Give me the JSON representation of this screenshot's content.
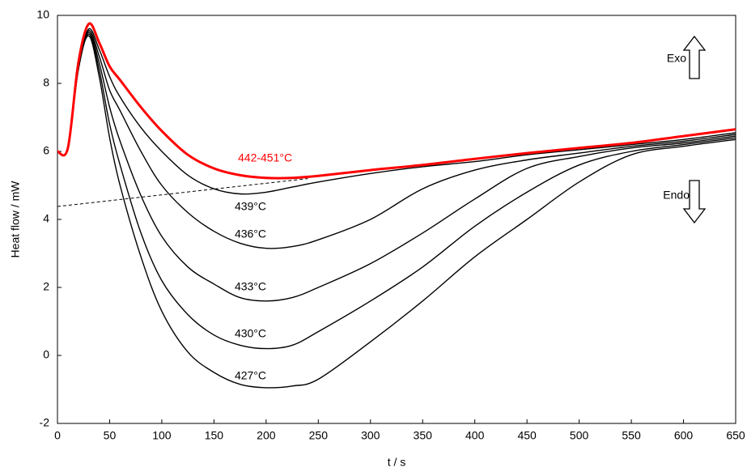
{
  "chart_data": {
    "type": "line",
    "x_label": "t / s",
    "y_label": "Heat flow / mW",
    "x": [
      0,
      10,
      20,
      30,
      40,
      50,
      60,
      80,
      100,
      125,
      150,
      175,
      200,
      225,
      250,
      300,
      350,
      400,
      450,
      500,
      550,
      600,
      650
    ],
    "series": [
      {
        "name": "442-451°C",
        "color": "#ff0000",
        "values": [
          6.0,
          6.1,
          8.6,
          9.75,
          9.2,
          8.5,
          8.1,
          7.3,
          6.6,
          5.9,
          5.5,
          5.3,
          5.22,
          5.22,
          5.28,
          5.45,
          5.6,
          5.78,
          5.95,
          6.1,
          6.25,
          6.45,
          6.65
        ]
      },
      {
        "name": "439°C",
        "color": "#000000",
        "values": [
          6.0,
          6.1,
          8.5,
          9.6,
          9.0,
          8.2,
          7.6,
          6.7,
          6.0,
          5.3,
          4.9,
          4.75,
          4.8,
          4.95,
          5.1,
          5.35,
          5.55,
          5.7,
          5.9,
          6.05,
          6.2,
          6.35,
          6.55
        ]
      },
      {
        "name": "436°C",
        "color": "#000000",
        "values": [
          6.0,
          6.1,
          8.5,
          9.55,
          8.8,
          7.8,
          7.2,
          6.0,
          5.0,
          4.2,
          3.65,
          3.3,
          3.15,
          3.2,
          3.4,
          4.0,
          4.9,
          5.45,
          5.75,
          5.95,
          6.15,
          6.3,
          6.5
        ]
      },
      {
        "name": "433°C",
        "color": "#000000",
        "values": [
          6.0,
          6.1,
          8.5,
          9.5,
          8.6,
          7.3,
          6.3,
          4.7,
          3.5,
          2.6,
          2.1,
          1.7,
          1.6,
          1.7,
          2.0,
          2.7,
          3.6,
          4.6,
          5.5,
          5.85,
          6.1,
          6.25,
          6.45
        ]
      },
      {
        "name": "430°C",
        "color": "#000000",
        "values": [
          6.0,
          6.1,
          8.4,
          9.45,
          8.4,
          6.8,
          5.6,
          3.6,
          2.2,
          1.2,
          0.6,
          0.3,
          0.2,
          0.3,
          0.7,
          1.6,
          2.6,
          3.8,
          4.8,
          5.6,
          6.0,
          6.2,
          6.4
        ]
      },
      {
        "name": "427°C",
        "color": "#000000",
        "values": [
          6.0,
          6.1,
          8.4,
          9.4,
          8.2,
          6.4,
          5.0,
          2.9,
          1.3,
          0.1,
          -0.5,
          -0.85,
          -0.95,
          -0.9,
          -0.7,
          0.4,
          1.6,
          2.9,
          4.0,
          5.1,
          5.9,
          6.15,
          6.35
        ]
      }
    ],
    "baseline": {
      "x": [
        0,
        240
      ],
      "values": [
        4.38,
        5.2
      ]
    },
    "annotations": [
      "Exo",
      "Endo"
    ],
    "xlim": [
      0,
      650
    ],
    "ylim": [
      -2,
      10
    ],
    "xticks": [
      0,
      50,
      100,
      150,
      200,
      250,
      300,
      350,
      400,
      450,
      500,
      550,
      600,
      650
    ],
    "yticks": [
      -2,
      0,
      2,
      4,
      6,
      8,
      10
    ]
  }
}
